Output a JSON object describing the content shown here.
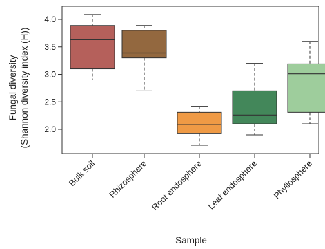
{
  "chart_data": {
    "type": "box",
    "title": "",
    "xlabel": "Sample",
    "ylabel_line1": "Fungal diversity",
    "ylabel_line2": "(Shannon diversity index (H))",
    "ylim": [
      1.6,
      4.15
    ],
    "yticks": [
      2.0,
      2.5,
      3.0,
      3.5,
      4.0
    ],
    "ytick_labels": [
      "2.0",
      "2.5",
      "3.0",
      "3.5",
      "4.0"
    ],
    "grid": false,
    "categories": [
      "Bulk soil",
      "Rhizosphere",
      "Root endosphere",
      "Leaf endosphere",
      "Phyllosphere"
    ],
    "boxes": [
      {
        "label": "Bulk soil",
        "min": 2.9,
        "q1": 3.1,
        "median": 3.63,
        "q3": 3.89,
        "max": 4.09,
        "color": "#b5605b"
      },
      {
        "label": "Rhizosphere",
        "min": 2.7,
        "q1": 3.3,
        "median": 3.39,
        "q3": 3.8,
        "max": 3.89,
        "color": "#93683f"
      },
      {
        "label": "Root endosphere",
        "min": 1.71,
        "q1": 1.92,
        "median": 2.09,
        "q3": 2.31,
        "max": 2.42,
        "color": "#ef9a45"
      },
      {
        "label": "Leaf endosphere",
        "min": 1.9,
        "q1": 2.1,
        "median": 2.26,
        "q3": 2.7,
        "max": 3.2,
        "color": "#43875a"
      },
      {
        "label": "Phyllosphere",
        "min": 2.1,
        "q1": 2.31,
        "median": 3.01,
        "q3": 3.19,
        "max": 3.6,
        "color": "#9ecd9c"
      }
    ],
    "colors": {
      "background": "#ffffff",
      "frame": "#333333",
      "text": "#222222"
    }
  }
}
